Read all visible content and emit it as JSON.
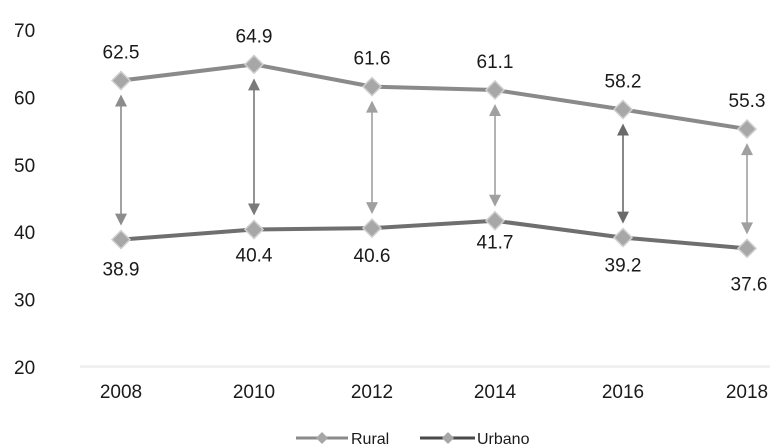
{
  "chart_data": {
    "type": "line",
    "title": "",
    "xlabel": "",
    "ylabel": "",
    "categories": [
      "2008",
      "2010",
      "2012",
      "2014",
      "2016",
      "2018"
    ],
    "ylim": [
      20,
      70
    ],
    "yticks": [
      "20",
      "30",
      "40",
      "50",
      "60",
      "70"
    ],
    "grid": false,
    "legend_position": "bottom-center",
    "series": [
      {
        "name": "Rural",
        "values": [
          62.5,
          64.9,
          61.6,
          61.1,
          58.2,
          55.3
        ],
        "labels": [
          "62.5",
          "64.9",
          "61.6",
          "61.1",
          "58.2",
          "55.3"
        ],
        "color": "#8a8a8a"
      },
      {
        "name": "Urbano",
        "values": [
          38.9,
          40.4,
          40.6,
          41.7,
          39.2,
          37.6
        ],
        "labels": [
          "38.9",
          "40.4",
          "40.6",
          "41.7",
          "39.2",
          "37.6"
        ],
        "color": "#6f6f6f"
      }
    ],
    "gap_arrows": true
  }
}
